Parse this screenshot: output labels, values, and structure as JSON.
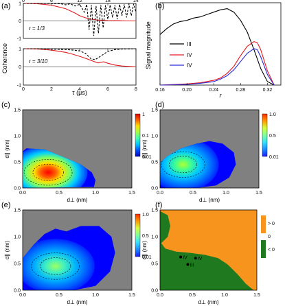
{
  "colors": {
    "black": "#000000",
    "red": "#e8191f",
    "blue": "#2b2bd6",
    "gray_background": "#808080",
    "green_region": "#1f7a1f",
    "orange_region": "#f7941d"
  },
  "colormaps": {
    "jet": [
      "#0000c8",
      "#0050ff",
      "#00c8ff",
      "#40ffb0",
      "#a0ff40",
      "#ffe000",
      "#ff6000",
      "#e00000"
    ],
    "jet_muted": [
      "#1a1aff",
      "#1e8cff",
      "#37e0ff",
      "#7dff9b",
      "#d4ff3c",
      "#ff9900",
      "#ff2a00"
    ]
  },
  "chart_data": [
    {
      "panel": "(a)",
      "type": "line",
      "subplots": [
        {
          "annotation": "r = 1/3",
          "xlim": [
            0,
            24
          ],
          "xticks": [
            "0",
            "6",
            "12",
            "18",
            "24"
          ],
          "ylim": [
            -1,
            1
          ],
          "yticks": [
            "-1",
            "0",
            "1"
          ],
          "series": [
            {
              "style": "solid",
              "color": "red",
              "x": [
                0,
                3,
                6,
                9,
                11,
                12,
                13,
                14,
                15,
                16,
                18,
                20,
                22,
                24
              ],
              "y": [
                1.0,
                0.98,
                0.9,
                0.7,
                0.45,
                0.3,
                0.2,
                0.12,
                0.08,
                0.05,
                0.02,
                0.01,
                0.0,
                0.0
              ]
            },
            {
              "style": "dashed",
              "color": "black",
              "x": [
                0,
                4,
                8,
                9,
                10,
                11,
                12,
                13,
                13.5,
                14,
                14.5,
                15,
                15.5,
                16,
                16.5,
                17,
                17.5,
                18,
                18.5,
                19,
                19.5,
                20,
                20.5,
                21,
                21.5,
                22,
                22.5,
                23,
                23.5,
                24
              ],
              "y": [
                1.0,
                1.0,
                0.98,
                0.92,
                0.98,
                0.85,
                0.95,
                0.5,
                0.95,
                -0.5,
                0.9,
                -0.85,
                0.85,
                -0.7,
                0.9,
                -0.4,
                0.9,
                0.1,
                0.92,
                0.2,
                0.9,
                0.1,
                0.95,
                0.3,
                0.95,
                0.2,
                0.98,
                0.3,
                0.97,
                0.5
              ]
            }
          ]
        },
        {
          "annotation": "r = 3/10",
          "xlim": [
            0,
            8
          ],
          "xticks": [
            "0",
            "2",
            "4",
            "6",
            "8"
          ],
          "ylim": [
            -1,
            1
          ],
          "yticks": [
            "-1",
            "0",
            "1"
          ],
          "series": [
            {
              "style": "solid",
              "color": "red",
              "x": [
                0,
                1,
                2,
                3,
                3.5,
                4,
                4.5,
                5,
                5.3,
                5.7,
                6,
                6.5,
                7,
                8
              ],
              "y": [
                1.0,
                0.98,
                0.92,
                0.8,
                0.7,
                0.58,
                0.45,
                0.3,
                0.22,
                0.28,
                0.2,
                0.1,
                0.05,
                0.0
              ]
            },
            {
              "style": "dashed",
              "color": "black",
              "x": [
                0,
                1,
                2,
                3,
                3.5,
                4,
                4.4,
                4.8,
                5.1,
                5.5,
                6,
                6.5,
                7,
                7.5,
                8
              ],
              "y": [
                1.0,
                1.0,
                0.98,
                0.95,
                0.93,
                0.88,
                0.75,
                0.45,
                0.4,
                0.6,
                0.85,
                0.95,
                0.98,
                0.99,
                1.0
              ]
            }
          ]
        }
      ],
      "xlabel": "τ (μs)",
      "ylabel": "Coherence"
    },
    {
      "panel": "(b)",
      "type": "line",
      "xlabel": "r",
      "ylabel": "Signal magnitude",
      "xlim": [
        0.16,
        0.34
      ],
      "ylim": [
        0,
        0.7
      ],
      "xticks": [
        "0.16",
        "0.20",
        "0.24",
        "0.28",
        "0.32"
      ],
      "legend": "left",
      "series": [
        {
          "name": "III",
          "color": "black",
          "x": [
            0.16,
            0.17,
            0.18,
            0.19,
            0.2,
            0.21,
            0.22,
            0.23,
            0.24,
            0.25,
            0.26,
            0.27,
            0.28,
            0.29,
            0.3,
            0.31,
            0.32,
            0.33
          ],
          "y": [
            0.43,
            0.48,
            0.52,
            0.54,
            0.55,
            0.57,
            0.58,
            0.6,
            0.62,
            0.64,
            0.65,
            0.62,
            0.55,
            0.45,
            0.3,
            0.14,
            0.03,
            0.0
          ]
        },
        {
          "name": "IV",
          "color": "red",
          "x": [
            0.16,
            0.2,
            0.22,
            0.24,
            0.25,
            0.26,
            0.27,
            0.28,
            0.29,
            0.3,
            0.305,
            0.31,
            0.32,
            0.33
          ],
          "y": [
            0.0,
            0.01,
            0.02,
            0.04,
            0.06,
            0.1,
            0.16,
            0.25,
            0.33,
            0.37,
            0.36,
            0.3,
            0.12,
            0.0
          ]
        },
        {
          "name": "IV",
          "color": "blue",
          "x": [
            0.16,
            0.2,
            0.22,
            0.24,
            0.25,
            0.26,
            0.27,
            0.28,
            0.29,
            0.3,
            0.305,
            0.31,
            0.32,
            0.33
          ],
          "y": [
            0.0,
            0.005,
            0.015,
            0.03,
            0.05,
            0.08,
            0.13,
            0.2,
            0.27,
            0.31,
            0.3,
            0.24,
            0.09,
            0.0
          ]
        }
      ]
    },
    {
      "panel": "(c)",
      "type": "heatmap",
      "xlabel": "d⊥ (nm)",
      "ylabel": "d∥ (nm)",
      "xlim": [
        0,
        1.5
      ],
      "ylim": [
        0,
        1.5
      ],
      "xticks": [
        "0.0",
        "0.5",
        "1.0",
        "1.5"
      ],
      "yticks": [
        "0.0",
        "0.5",
        "1.0",
        "1.5"
      ],
      "colorbar_ticks": [
        "1",
        "0.1",
        "0.01"
      ],
      "region_outline": [
        [
          0.0,
          0.7
        ],
        [
          0.05,
          0.76
        ],
        [
          0.3,
          0.74
        ],
        [
          0.55,
          0.6
        ],
        [
          0.8,
          0.45
        ],
        [
          0.95,
          0.3
        ],
        [
          1.0,
          0.15
        ],
        [
          0.98,
          0.02
        ],
        [
          0.0,
          0.0
        ]
      ],
      "peak": [
        0.35,
        0.3
      ]
    },
    {
      "panel": "(d)",
      "type": "heatmap",
      "xlabel": "d⊥ (nm)",
      "ylabel": "d∥ (nm)",
      "xlim": [
        0,
        1.5
      ],
      "ylim": [
        0,
        1.5
      ],
      "xticks": [
        "0.0",
        "0.5",
        "1.0",
        "1.5"
      ],
      "yticks": [
        "0.0",
        "0.5",
        "1.0",
        "1.5"
      ],
      "colorbar_ticks": [
        "1.0",
        "0.5",
        "0.01"
      ],
      "region_outline": [
        [
          0.0,
          0.48
        ],
        [
          0.1,
          0.6
        ],
        [
          0.3,
          0.75
        ],
        [
          0.55,
          0.85
        ],
        [
          0.75,
          0.9
        ],
        [
          0.95,
          0.85
        ],
        [
          1.12,
          0.68
        ],
        [
          1.15,
          0.45
        ],
        [
          1.05,
          0.2
        ],
        [
          0.85,
          0.05
        ],
        [
          0.55,
          0.0
        ],
        [
          0.0,
          0.0
        ]
      ],
      "peak": [
        0.35,
        0.45
      ]
    },
    {
      "panel": "(e)",
      "type": "heatmap",
      "xlabel": "d⊥ (nm)",
      "ylabel": "d∥ (nm)",
      "xlim": [
        0,
        1.5
      ],
      "ylim": [
        0,
        1.5
      ],
      "xticks": [
        "0.0",
        "0.5",
        "1.0",
        "1.5"
      ],
      "yticks": [
        "0.0",
        "0.5",
        "1.0",
        "1.5"
      ],
      "colorbar_ticks": [
        "1.0",
        "0.5",
        "0.01"
      ],
      "region_outline": [
        [
          0.0,
          0.6
        ],
        [
          0.15,
          0.85
        ],
        [
          0.3,
          1.05
        ],
        [
          0.45,
          1.15
        ],
        [
          0.6,
          1.1
        ],
        [
          0.8,
          1.2
        ],
        [
          1.05,
          1.2
        ],
        [
          1.22,
          1.0
        ],
        [
          1.27,
          0.7
        ],
        [
          1.2,
          0.35
        ],
        [
          1.0,
          0.08
        ],
        [
          0.7,
          0.0
        ],
        [
          0.0,
          0.0
        ]
      ],
      "peak": [
        0.45,
        0.45
      ]
    },
    {
      "panel": "(f)",
      "type": "region_map",
      "xlabel": "d⊥ (nm)",
      "ylabel": "d∥ (nm)",
      "xlim": [
        0,
        1.5
      ],
      "ylim": [
        0,
        1.5
      ],
      "xticks": [
        "0.0",
        "0.5",
        "1.0",
        "1.5"
      ],
      "yticks": [
        "0.0",
        "0.5",
        "1.0",
        "1.5"
      ],
      "legend": [
        {
          "label": "> 0",
          "color": "orange_region"
        },
        {
          "label": "0",
          "color": "none"
        },
        {
          "label": "< 0",
          "color": "green_region"
        }
      ],
      "points": [
        {
          "label": "IV",
          "x": 0.32,
          "y": 0.62
        },
        {
          "label": "IV",
          "x": 0.55,
          "y": 0.6
        },
        {
          "label": "III",
          "x": 0.43,
          "y": 0.48
        }
      ]
    }
  ],
  "annotations": {
    "a_top": "r = 1/3",
    "a_bottom": "r = 3/10"
  }
}
